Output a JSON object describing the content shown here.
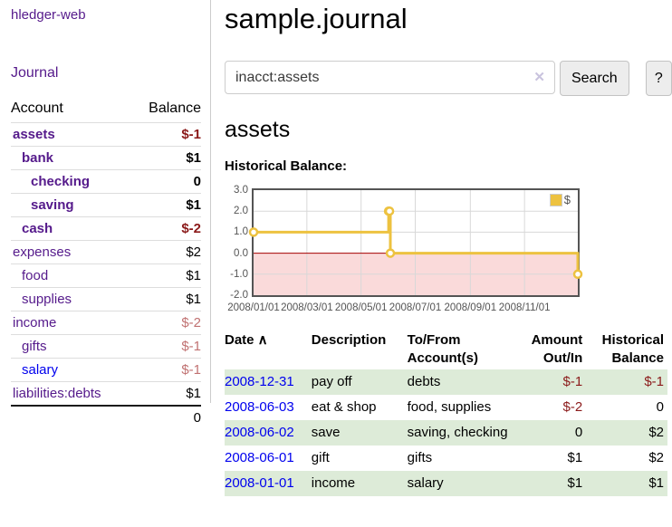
{
  "app": {
    "title": "hledger-web"
  },
  "sidebar": {
    "nav_journal": "Journal",
    "accounts": {
      "header_account": "Account",
      "header_balance": "Balance",
      "rows": [
        {
          "name": "assets",
          "depth": 1,
          "bold": true,
          "balance": "$-1",
          "neg": "strong",
          "link": "purple"
        },
        {
          "name": "bank",
          "depth": 2,
          "bold": true,
          "balance": "$1",
          "neg": "",
          "link": "purple"
        },
        {
          "name": "checking",
          "depth": 3,
          "bold": true,
          "balance": "0",
          "neg": "",
          "link": "purple"
        },
        {
          "name": "saving",
          "depth": 3,
          "bold": true,
          "balance": "$1",
          "neg": "",
          "link": "purple"
        },
        {
          "name": "cash",
          "depth": 2,
          "bold": true,
          "balance": "$-2",
          "neg": "strong",
          "link": "purple"
        },
        {
          "name": "expenses",
          "depth": 1,
          "bold": false,
          "balance": "$2",
          "neg": "",
          "link": "purple"
        },
        {
          "name": "food",
          "depth": 2,
          "bold": false,
          "balance": "$1",
          "neg": "",
          "link": "purple"
        },
        {
          "name": "supplies",
          "depth": 2,
          "bold": false,
          "balance": "$1",
          "neg": "",
          "link": "purple"
        },
        {
          "name": "income",
          "depth": 1,
          "bold": false,
          "balance": "$-2",
          "neg": "soft",
          "link": "purple"
        },
        {
          "name": "gifts",
          "depth": 2,
          "bold": false,
          "balance": "$-1",
          "neg": "soft",
          "link": "purple"
        },
        {
          "name": "salary",
          "depth": 2,
          "bold": false,
          "balance": "$-1",
          "neg": "soft",
          "link": "blue"
        },
        {
          "name": "liabilities:debts",
          "depth": 1,
          "bold": false,
          "balance": "$1",
          "neg": "",
          "link": "purple"
        }
      ],
      "total": "0"
    }
  },
  "main": {
    "title": "sample.journal",
    "search": {
      "value": "inacct:assets",
      "clear_icon": "✕",
      "search_button": "Search",
      "help_button": "?"
    },
    "heading": "assets",
    "chart_label": "Historical Balance:"
  },
  "register": {
    "headers": [
      {
        "line1": "Date",
        "line2": "",
        "sort": "∧",
        "align": "left"
      },
      {
        "line1": "Description",
        "line2": "",
        "sort": "",
        "align": "left"
      },
      {
        "line1": "To/From",
        "line2": "Account(s)",
        "sort": "",
        "align": "left"
      },
      {
        "line1": "Amount",
        "line2": "Out/In",
        "sort": "",
        "align": "right"
      },
      {
        "line1": "Historical",
        "line2": "Balance",
        "sort": "",
        "align": "right"
      }
    ],
    "rows": [
      {
        "date": "2008-12-31",
        "description": "pay off",
        "accounts": "debts",
        "amount": "$-1",
        "amount_neg": true,
        "balance": "$-1",
        "balance_neg": true,
        "stripe": true
      },
      {
        "date": "2008-06-03",
        "description": "eat & shop",
        "accounts": "food, supplies",
        "amount": "$-2",
        "amount_neg": true,
        "balance": "0",
        "balance_neg": false,
        "stripe": false
      },
      {
        "date": "2008-06-02",
        "description": "save",
        "accounts": "saving, checking",
        "amount": "0",
        "amount_neg": false,
        "balance": "$2",
        "balance_neg": false,
        "stripe": true
      },
      {
        "date": "2008-06-01",
        "description": "gift",
        "accounts": "gifts",
        "amount": "$1",
        "amount_neg": false,
        "balance": "$2",
        "balance_neg": false,
        "stripe": false
      },
      {
        "date": "2008-01-01",
        "description": "income",
        "accounts": "salary",
        "amount": "$1",
        "amount_neg": false,
        "balance": "$1",
        "balance_neg": false,
        "stripe": true
      }
    ]
  },
  "chart_data": {
    "type": "line",
    "step": true,
    "title": "Historical Balance:",
    "series": [
      {
        "name": "$",
        "color": "#edc240",
        "points": [
          [
            "2008-01-01",
            1
          ],
          [
            "2008-06-01",
            2
          ],
          [
            "2008-06-02",
            2
          ],
          [
            "2008-06-03",
            0
          ],
          [
            "2008-12-31",
            -1
          ]
        ]
      }
    ],
    "x_range": [
      "2008-01-01",
      "2008-12-31"
    ],
    "ylim": [
      -2,
      3
    ],
    "y_ticks": [
      3.0,
      2.0,
      1.0,
      0.0,
      -1.0,
      -2.0
    ],
    "x_ticks": [
      "2008/01/01",
      "2008/03/01",
      "2008/05/01",
      "2008/07/01",
      "2008/09/01",
      "2008/11/01"
    ],
    "legend_position": "top-right",
    "negative_region_color": "#fadada",
    "zero_line_color": "#a40000",
    "grid_color": "#d8d8d8",
    "border_color": "#545454"
  },
  "colors": {
    "link_purple": "#551a8b",
    "link_blue": "#0000ee",
    "negative_strong": "#8b1a1a",
    "negative_soft": "#c17272",
    "stripe_green": "#ddebd8",
    "series_gold": "#edc240"
  }
}
